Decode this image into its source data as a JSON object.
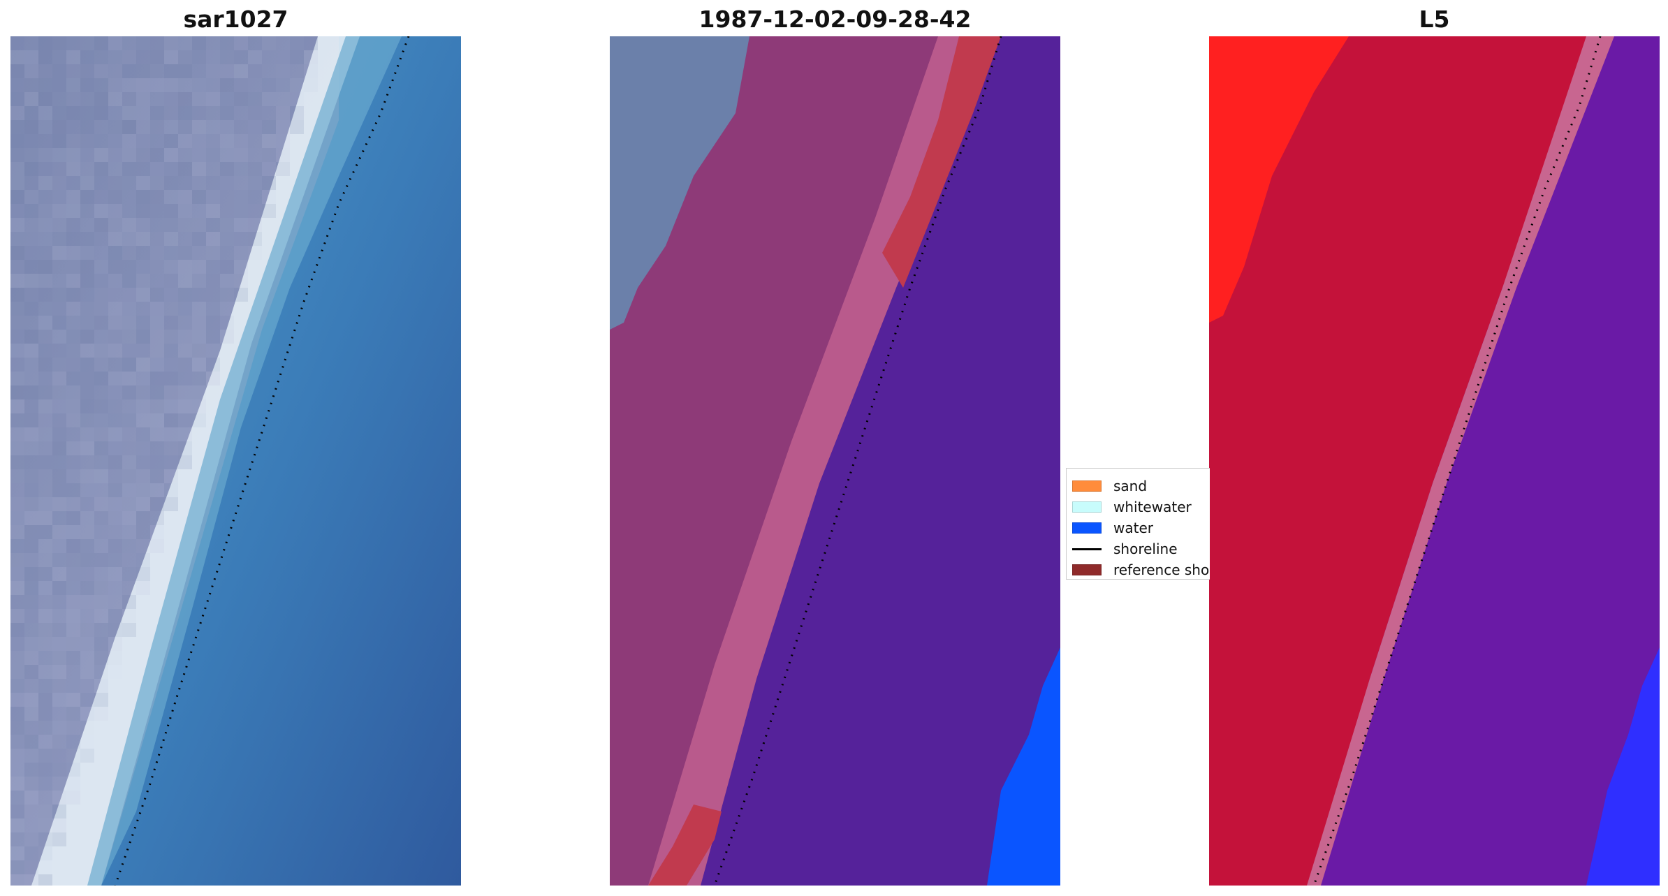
{
  "panels": [
    {
      "id": "rgb",
      "title": "sar1027"
    },
    {
      "id": "classified",
      "title": "1987-12-02-09-28-42"
    },
    {
      "id": "mndwi",
      "title": "L5"
    }
  ],
  "legend": {
    "items": [
      {
        "label": "sand",
        "kind": "patch",
        "color": "#ff8c3b"
      },
      {
        "label": "whitewater",
        "kind": "patch",
        "color": "#c8fcfc"
      },
      {
        "label": "water",
        "kind": "patch",
        "color": "#0a55ff"
      },
      {
        "label": "shoreline",
        "kind": "line",
        "color": "#000000"
      },
      {
        "label": "reference shoreline",
        "kind": "patch",
        "color": "#8f2a2a"
      }
    ]
  },
  "colors": {
    "land_rgb": "#8a97b8",
    "surf_white": "#eef6fa",
    "sea_rgb": "#3a7fb8",
    "land_overlay": "#8e3a78",
    "sand_overlay": "#b95a8c",
    "reference_overlay": "#c13a4e",
    "sea_overlay": "#55229a",
    "water_blue": "#0a55ff",
    "land_index": "#c4123a",
    "land_index_bright": "#ff2020",
    "sea_index": "#6a1aa6",
    "shoreline": "#000000"
  }
}
